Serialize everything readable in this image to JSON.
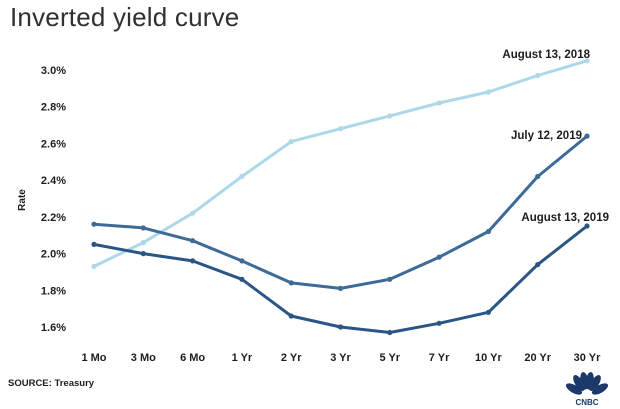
{
  "title": "Inverted yield curve",
  "source": "SOURCE: Treasury",
  "logo_text": "CNBC",
  "chart_data": {
    "type": "line",
    "title": "Inverted yield curve",
    "xlabel": "",
    "ylabel": "Rate",
    "categories": [
      "1 Mo",
      "3 Mo",
      "6 Mo",
      "1 Yr",
      "2 Yr",
      "3 Yr",
      "5 Yr",
      "7 Yr",
      "10 Yr",
      "20 Yr",
      "30 Yr"
    ],
    "yticks": [
      "1.6%",
      "1.8%",
      "2.0%",
      "2.2%",
      "2.4%",
      "2.6%",
      "2.8%",
      "3.0%"
    ],
    "ylim": [
      1.5,
      3.1
    ],
    "grid": false,
    "series": [
      {
        "name": "August 13, 2018",
        "color": "#add8ea",
        "values": [
          1.93,
          2.06,
          2.22,
          2.42,
          2.61,
          2.68,
          2.75,
          2.82,
          2.88,
          2.97,
          3.05
        ]
      },
      {
        "name": "July 12, 2019",
        "color": "#3d6a96",
        "values": [
          2.16,
          2.14,
          2.07,
          1.96,
          1.84,
          1.81,
          1.86,
          1.98,
          2.12,
          2.42,
          2.64
        ]
      },
      {
        "name": "August 13, 2019",
        "color": "#2a5585",
        "values": [
          2.05,
          2.0,
          1.96,
          1.86,
          1.66,
          1.6,
          1.57,
          1.62,
          1.68,
          1.94,
          2.15
        ]
      }
    ]
  }
}
